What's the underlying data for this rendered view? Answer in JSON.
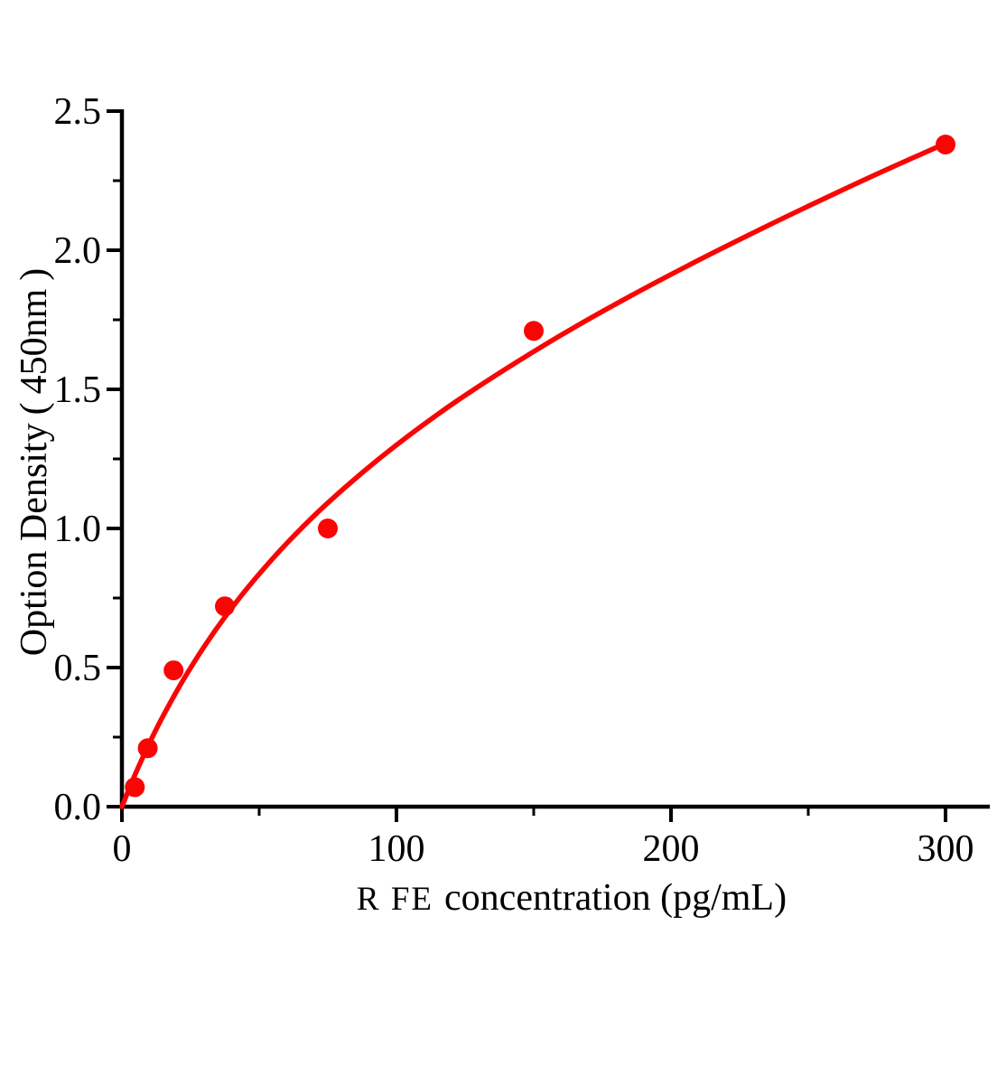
{
  "chart_data": {
    "type": "scatter",
    "title": "",
    "xlabel": "R FE concentration (pg/mL)",
    "xlabel_prefix": "R FE",
    "xlabel_rest": "concentration (pg/mL)",
    "ylabel": "Option Density（450nm）",
    "xlim": [
      0,
      316
    ],
    "ylim": [
      0,
      2.5
    ],
    "x_tick_labels": [
      "0",
      "100",
      "200",
      "300"
    ],
    "x_tick_values": [
      0,
      100,
      200,
      300
    ],
    "x_minor_ticks": [
      50,
      150,
      250
    ],
    "y_tick_labels": [
      "0.0",
      "0.5",
      "1.0",
      "1.5",
      "2.0",
      "2.5"
    ],
    "y_tick_values": [
      0,
      0.5,
      1.0,
      1.5,
      2.0,
      2.5
    ],
    "y_minor_ticks": [
      0.25,
      0.75,
      1.25,
      1.75,
      2.25
    ],
    "grid": false,
    "legend": false,
    "series": [
      {
        "name": "standard-curve-points",
        "points": [
          {
            "x": 4.7,
            "y": 0.07
          },
          {
            "x": 9.4,
            "y": 0.21
          },
          {
            "x": 18.8,
            "y": 0.49
          },
          {
            "x": 37.5,
            "y": 0.72
          },
          {
            "x": 75,
            "y": 1.0
          },
          {
            "x": 150,
            "y": 1.71
          },
          {
            "x": 300,
            "y": 2.38
          }
        ]
      }
    ],
    "fit_curve": [
      [
        0,
        0
      ],
      [
        2.5,
        0.061
      ],
      [
        5,
        0.12
      ],
      [
        10,
        0.228
      ],
      [
        15,
        0.326
      ],
      [
        22,
        0.45
      ],
      [
        30,
        0.576
      ],
      [
        38,
        0.688
      ],
      [
        48,
        0.813
      ],
      [
        60,
        0.946
      ],
      [
        75,
        1.092
      ],
      [
        95,
        1.261
      ],
      [
        115,
        1.41
      ],
      [
        135,
        1.543
      ],
      [
        160,
        1.695
      ],
      [
        185,
        1.834
      ],
      [
        210,
        1.964
      ],
      [
        235,
        2.087
      ],
      [
        260,
        2.205
      ],
      [
        280,
        2.296
      ],
      [
        300,
        2.384
      ]
    ],
    "colors": {
      "accent": "#fa0505",
      "axis": "#000000",
      "text": "#000000",
      "background": "#ffffff"
    },
    "marker_radius": 11
  }
}
